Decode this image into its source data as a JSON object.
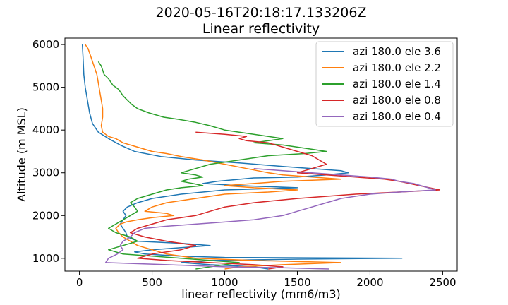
{
  "chart_data": {
    "type": "line",
    "title": "2020-05-16T20:18:17.133206Z",
    "subtitle": "Linear reflectivity",
    "xlabel": "linear reflectivity (mm6/m3)",
    "ylabel": "Altitude (m MSL)",
    "xlim": [
      -100,
      2600
    ],
    "ylim": [
      700,
      6150
    ],
    "x_ticks": [
      0,
      500,
      1000,
      1500,
      2000,
      2500
    ],
    "x_tick_labels": [
      "0",
      "500",
      "1000",
      "1500",
      "2000",
      "2500"
    ],
    "y_ticks": [
      1000,
      2000,
      3000,
      4000,
      5000,
      6000
    ],
    "y_tick_labels": [
      "1000",
      "2000",
      "3000",
      "4000",
      "5000",
      "6000"
    ],
    "grid": false,
    "legend_position": "top-right",
    "series": [
      {
        "name": "azi 180.0 ele 3.6",
        "color": "#1f77b4",
        "points": [
          [
            20,
            6000
          ],
          [
            25,
            5700
          ],
          [
            30,
            5300
          ],
          [
            40,
            5000
          ],
          [
            55,
            4700
          ],
          [
            70,
            4400
          ],
          [
            90,
            4150
          ],
          [
            130,
            3950
          ],
          [
            200,
            3800
          ],
          [
            280,
            3650
          ],
          [
            380,
            3500
          ],
          [
            560,
            3380
          ],
          [
            800,
            3300
          ],
          [
            1100,
            3230
          ],
          [
            1400,
            3150
          ],
          [
            1600,
            3100
          ],
          [
            1800,
            3050
          ],
          [
            1850,
            3000
          ],
          [
            1700,
            2950
          ],
          [
            1500,
            2900
          ],
          [
            1200,
            2880
          ],
          [
            950,
            2800
          ],
          [
            850,
            2750
          ],
          [
            1100,
            2700
          ],
          [
            1500,
            2650
          ],
          [
            1000,
            2600
          ],
          [
            700,
            2500
          ],
          [
            500,
            2400
          ],
          [
            400,
            2300
          ],
          [
            330,
            2200
          ],
          [
            300,
            2100
          ],
          [
            320,
            2000
          ],
          [
            300,
            1900
          ],
          [
            280,
            1800
          ],
          [
            300,
            1700
          ],
          [
            320,
            1600
          ],
          [
            330,
            1500
          ],
          [
            400,
            1400
          ],
          [
            700,
            1350
          ],
          [
            900,
            1300
          ],
          [
            700,
            1250
          ],
          [
            500,
            1200
          ],
          [
            380,
            1150
          ],
          [
            450,
            1100
          ],
          [
            700,
            1050
          ],
          [
            1000,
            1020
          ],
          [
            2220,
            1000
          ],
          [
            1500,
            980
          ],
          [
            900,
            950
          ],
          [
            700,
            900
          ],
          [
            900,
            850
          ],
          [
            1200,
            800
          ],
          [
            1300,
            750
          ]
        ]
      },
      {
        "name": "azi 180.0 ele 2.2",
        "color": "#ff7f0e",
        "points": [
          [
            40,
            6000
          ],
          [
            60,
            5900
          ],
          [
            80,
            5700
          ],
          [
            100,
            5500
          ],
          [
            120,
            5300
          ],
          [
            130,
            5100
          ],
          [
            140,
            4900
          ],
          [
            150,
            4700
          ],
          [
            160,
            4500
          ],
          [
            160,
            4300
          ],
          [
            150,
            4100
          ],
          [
            160,
            3950
          ],
          [
            200,
            3850
          ],
          [
            250,
            3800
          ],
          [
            300,
            3700
          ],
          [
            400,
            3600
          ],
          [
            500,
            3500
          ],
          [
            600,
            3450
          ],
          [
            700,
            3380
          ],
          [
            850,
            3300
          ],
          [
            1000,
            3200
          ],
          [
            1150,
            3100
          ],
          [
            1300,
            3000
          ],
          [
            1400,
            2950
          ],
          [
            1600,
            2900
          ],
          [
            1800,
            2850
          ],
          [
            1400,
            2800
          ],
          [
            1200,
            2750
          ],
          [
            1000,
            2700
          ],
          [
            1200,
            2650
          ],
          [
            1500,
            2600
          ],
          [
            1300,
            2550
          ],
          [
            1000,
            2500
          ],
          [
            800,
            2400
          ],
          [
            600,
            2300
          ],
          [
            500,
            2200
          ],
          [
            450,
            2100
          ],
          [
            600,
            2050
          ],
          [
            650,
            2000
          ],
          [
            500,
            1950
          ],
          [
            400,
            1900
          ],
          [
            320,
            1850
          ],
          [
            280,
            1800
          ],
          [
            250,
            1700
          ],
          [
            270,
            1600
          ],
          [
            300,
            1500
          ],
          [
            350,
            1400
          ],
          [
            400,
            1300
          ],
          [
            500,
            1200
          ],
          [
            600,
            1100
          ],
          [
            800,
            1000
          ],
          [
            1200,
            950
          ],
          [
            1800,
            900
          ],
          [
            1400,
            850
          ],
          [
            1100,
            800
          ],
          [
            1000,
            750
          ]
        ]
      },
      {
        "name": "azi 180.0 ele 1.4",
        "color": "#2ca02c",
        "points": [
          [
            130,
            5600
          ],
          [
            150,
            5500
          ],
          [
            170,
            5300
          ],
          [
            200,
            5200
          ],
          [
            230,
            5050
          ],
          [
            270,
            4950
          ],
          [
            300,
            4800
          ],
          [
            330,
            4700
          ],
          [
            360,
            4600
          ],
          [
            400,
            4500
          ],
          [
            480,
            4400
          ],
          [
            580,
            4300
          ],
          [
            680,
            4250
          ],
          [
            800,
            4180
          ],
          [
            900,
            4100
          ],
          [
            1000,
            4000
          ],
          [
            1100,
            3950
          ],
          [
            1200,
            3900
          ],
          [
            1300,
            3850
          ],
          [
            1400,
            3800
          ],
          [
            1300,
            3750
          ],
          [
            1200,
            3700
          ],
          [
            1400,
            3650
          ],
          [
            1500,
            3600
          ],
          [
            1600,
            3550
          ],
          [
            1700,
            3500
          ],
          [
            1550,
            3450
          ],
          [
            1300,
            3400
          ],
          [
            1100,
            3300
          ],
          [
            900,
            3200
          ],
          [
            800,
            3100
          ],
          [
            700,
            3000
          ],
          [
            800,
            2950
          ],
          [
            850,
            2900
          ],
          [
            750,
            2850
          ],
          [
            700,
            2800
          ],
          [
            780,
            2750
          ],
          [
            850,
            2700
          ],
          [
            700,
            2650
          ],
          [
            600,
            2600
          ],
          [
            500,
            2500
          ],
          [
            400,
            2400
          ],
          [
            350,
            2300
          ],
          [
            380,
            2200
          ],
          [
            400,
            2100
          ],
          [
            350,
            2000
          ],
          [
            300,
            1900
          ],
          [
            250,
            1800
          ],
          [
            200,
            1700
          ],
          [
            250,
            1600
          ],
          [
            350,
            1500
          ],
          [
            400,
            1400
          ],
          [
            300,
            1300
          ],
          [
            200,
            1200
          ],
          [
            300,
            1100
          ],
          [
            500,
            1050
          ],
          [
            700,
            1000
          ],
          [
            900,
            950
          ],
          [
            1100,
            900
          ],
          [
            1000,
            850
          ],
          [
            900,
            800
          ],
          [
            800,
            750
          ]
        ]
      },
      {
        "name": "azi 180.0 ele 0.8",
        "color": "#d62728",
        "points": [
          [
            800,
            3950
          ],
          [
            1000,
            3900
          ],
          [
            1150,
            3850
          ],
          [
            1100,
            3800
          ],
          [
            1150,
            3750
          ],
          [
            1300,
            3700
          ],
          [
            1400,
            3600
          ],
          [
            1500,
            3500
          ],
          [
            1600,
            3400
          ],
          [
            1650,
            3300
          ],
          [
            1700,
            3200
          ],
          [
            1600,
            3100
          ],
          [
            1500,
            3000
          ],
          [
            1700,
            2950
          ],
          [
            1900,
            2900
          ],
          [
            2100,
            2850
          ],
          [
            2200,
            2800
          ],
          [
            2480,
            2600
          ],
          [
            2200,
            2550
          ],
          [
            1900,
            2500
          ],
          [
            1500,
            2400
          ],
          [
            1200,
            2300
          ],
          [
            1000,
            2200
          ],
          [
            900,
            2100
          ],
          [
            800,
            2000
          ],
          [
            600,
            1900
          ],
          [
            500,
            1800
          ],
          [
            400,
            1700
          ],
          [
            350,
            1600
          ],
          [
            450,
            1500
          ],
          [
            600,
            1400
          ],
          [
            800,
            1300
          ],
          [
            700,
            1200
          ],
          [
            500,
            1100
          ],
          [
            400,
            1000
          ],
          [
            600,
            950
          ],
          [
            900,
            900
          ],
          [
            1200,
            850
          ],
          [
            1400,
            800
          ],
          [
            1300,
            750
          ]
        ]
      },
      {
        "name": "azi 180.0 ele 0.4",
        "color": "#9467bd",
        "points": [
          [
            1200,
            3100
          ],
          [
            1400,
            3050
          ],
          [
            1600,
            3000
          ],
          [
            1800,
            2950
          ],
          [
            2000,
            2900
          ],
          [
            2150,
            2850
          ],
          [
            2200,
            2800
          ],
          [
            2300,
            2750
          ],
          [
            2350,
            2700
          ],
          [
            2400,
            2650
          ],
          [
            2450,
            2600
          ],
          [
            2200,
            2550
          ],
          [
            2000,
            2500
          ],
          [
            1800,
            2400
          ],
          [
            1700,
            2300
          ],
          [
            1600,
            2200
          ],
          [
            1500,
            2100
          ],
          [
            1400,
            2000
          ],
          [
            1200,
            1900
          ],
          [
            1000,
            1850
          ],
          [
            800,
            1800
          ],
          [
            600,
            1750
          ],
          [
            450,
            1700
          ],
          [
            380,
            1600
          ],
          [
            350,
            1500
          ],
          [
            300,
            1400
          ],
          [
            280,
            1300
          ],
          [
            300,
            1200
          ],
          [
            260,
            1100
          ],
          [
            200,
            1000
          ],
          [
            180,
            900
          ],
          [
            600,
            850
          ],
          [
            1000,
            800
          ],
          [
            1400,
            780
          ],
          [
            1720,
            750
          ]
        ]
      }
    ]
  }
}
